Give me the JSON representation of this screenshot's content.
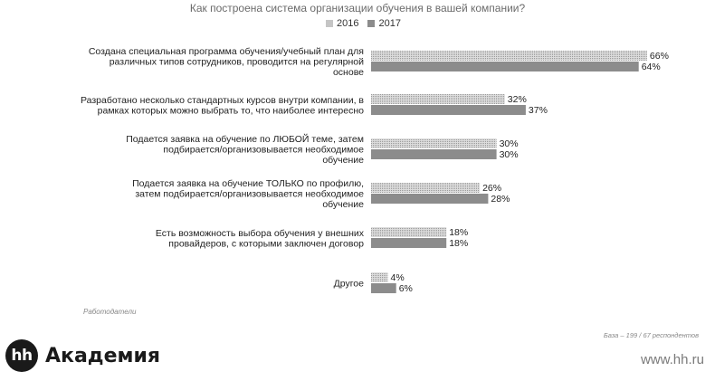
{
  "chart_data": {
    "type": "bar",
    "orientation": "horizontal",
    "title": "Как построена система организации обучения в вашей компании?",
    "categories": [
      [
        "Создана специальная программа обучения/учебный план для",
        "различных типов сотрудников, проводится на регулярной",
        "основе"
      ],
      [
        "Разработано несколько стандартных курсов внутри компании, в",
        "рамках которых можно выбрать то, что наиболее интересно"
      ],
      [
        "Подается заявка на обучение по ЛЮБОЙ теме, затем",
        "подбирается/организовывается необходимое",
        "обучение"
      ],
      [
        "Подается заявка на обучение ТОЛЬКО по профилю,",
        "затем подбирается/организовывается необходимое",
        "обучение"
      ],
      [
        "Есть возможность выбора обучения у внешних",
        "провайдеров, с которыми заключен договор"
      ],
      [
        "Другое"
      ]
    ],
    "series": [
      {
        "name": "2016",
        "values": [
          66,
          32,
          30,
          26,
          18,
          4
        ],
        "color": "#d9d9d9"
      },
      {
        "name": "2017",
        "values": [
          64,
          37,
          30,
          28,
          18,
          6
        ],
        "color": "#8c8c8c"
      }
    ],
    "value_suffix": "%",
    "xlim": [
      0,
      66
    ],
    "legend_position": "top-center"
  },
  "footer": {
    "note": "Работодатели",
    "base": "База – 199 / 67 респондентов",
    "logo_mark": "hh",
    "logo_text": "Академия",
    "site": "www.hh.ru"
  }
}
